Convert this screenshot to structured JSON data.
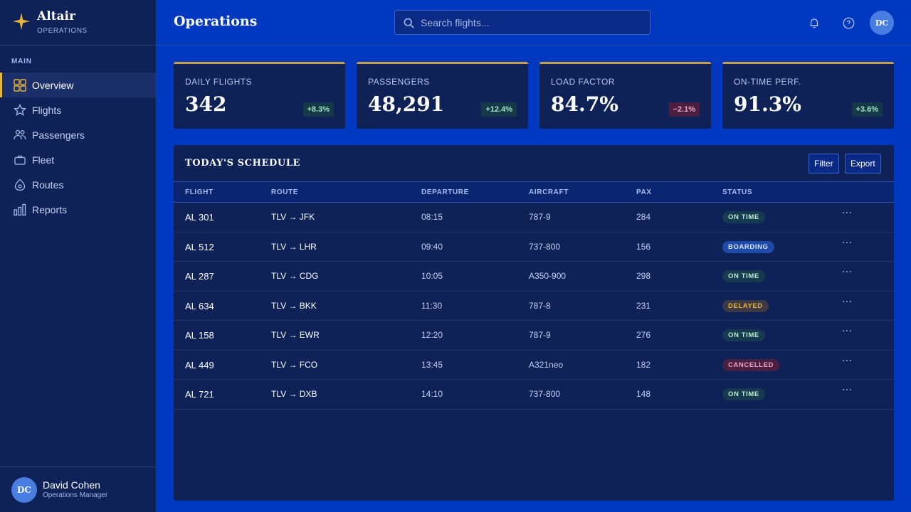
{
  "brand": {
    "name": "Altair",
    "sub": "OPERATIONS"
  },
  "sidebar": {
    "section": "MAIN",
    "items": [
      {
        "label": "Overview",
        "icon": "grid-icon"
      },
      {
        "label": "Flights",
        "icon": "star-icon"
      },
      {
        "label": "Passengers",
        "icon": "users-icon"
      },
      {
        "label": "Fleet",
        "icon": "briefcase-icon"
      },
      {
        "label": "Routes",
        "icon": "map-pin-icon"
      },
      {
        "label": "Reports",
        "icon": "bar-chart-icon"
      }
    ],
    "active": "Overview"
  },
  "user": {
    "initials": "DC",
    "name": "David Cohen",
    "role": "Operations Manager"
  },
  "header": {
    "title": "Operations",
    "search_placeholder": "Search flights...",
    "avatar_initials": "DC"
  },
  "kpis": [
    {
      "label": "DAILY FLIGHTS",
      "value": "342",
      "delta": "+8.3%"
    },
    {
      "label": "PASSENGERS",
      "value": "48,291",
      "delta": "+12.4%"
    },
    {
      "label": "LOAD FACTOR",
      "value": "84.7%",
      "delta": "−2.1%"
    },
    {
      "label": "ON-TIME PERF.",
      "value": "91.3%",
      "delta": "+3.6%"
    }
  ],
  "schedule": {
    "title": "TODAY'S SCHEDULE",
    "filter_label": "Filter",
    "export_label": "Export",
    "columns": [
      "FLIGHT",
      "ROUTE",
      "DEPARTURE",
      "AIRCRAFT",
      "PAX",
      "STATUS"
    ],
    "rows": [
      {
        "flight": "AL 301",
        "route": "TLV → JFK",
        "departure": "08:15",
        "aircraft": "787-9",
        "pax": "284",
        "status": "ON TIME"
      },
      {
        "flight": "AL 512",
        "route": "TLV → LHR",
        "departure": "09:40",
        "aircraft": "737-800",
        "pax": "156",
        "status": "BOARDING"
      },
      {
        "flight": "AL 287",
        "route": "TLV → CDG",
        "departure": "10:05",
        "aircraft": "A350-900",
        "pax": "298",
        "status": "ON TIME"
      },
      {
        "flight": "AL 634",
        "route": "TLV → BKK",
        "departure": "11:30",
        "aircraft": "787-8",
        "pax": "231",
        "status": "DELAYED"
      },
      {
        "flight": "AL 158",
        "route": "TLV → EWR",
        "departure": "12:20",
        "aircraft": "787-9",
        "pax": "276",
        "status": "ON TIME"
      },
      {
        "flight": "AL 449",
        "route": "TLV → FCO",
        "departure": "13:45",
        "aircraft": "A321neo",
        "pax": "182",
        "status": "CANCELLED"
      },
      {
        "flight": "AL 721",
        "route": "TLV → DXB",
        "departure": "14:10",
        "aircraft": "737-800",
        "pax": "148",
        "status": "ON TIME"
      }
    ]
  },
  "colors": {
    "background": "#0039c0",
    "panel": "#0f2257",
    "accent": "#e6b43c",
    "positive": "#9fe3bf",
    "negative": "#f0a5c0"
  }
}
